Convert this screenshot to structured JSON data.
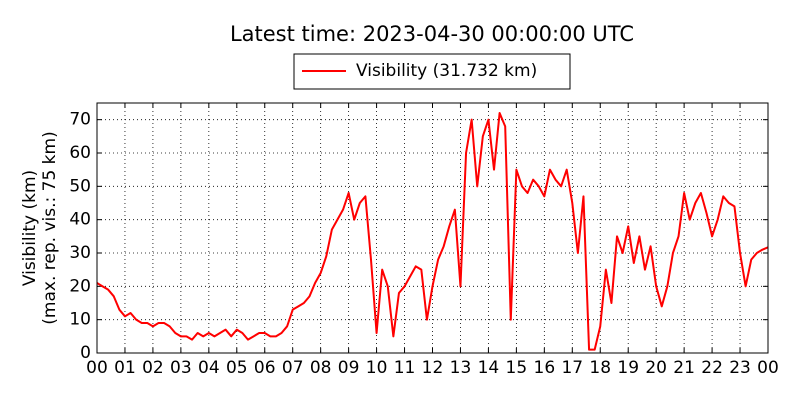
{
  "chart_data": {
    "type": "line",
    "title": "Latest time: 2023-04-30 00:00:00 UTC",
    "y_label": [
      "Visibility (km)",
      "(max. rep. vis.: 75 km)"
    ],
    "x": [
      0,
      0.2,
      0.4,
      0.6,
      0.8,
      1,
      1.2,
      1.4,
      1.6,
      1.8,
      2,
      2.2,
      2.4,
      2.6,
      2.8,
      3,
      3.2,
      3.4,
      3.6,
      3.8,
      4,
      4.2,
      4.4,
      4.6,
      4.8,
      5,
      5.2,
      5.4,
      5.6,
      5.8,
      6,
      6.2,
      6.4,
      6.6,
      6.8,
      7,
      7.2,
      7.4,
      7.6,
      7.8,
      8,
      8.2,
      8.4,
      8.6,
      8.8,
      9,
      9.2,
      9.4,
      9.6,
      9.8,
      10,
      10.2,
      10.4,
      10.6,
      10.8,
      11,
      11.2,
      11.4,
      11.6,
      11.8,
      12,
      12.2,
      12.4,
      12.6,
      12.8,
      13,
      13.2,
      13.4,
      13.6,
      13.8,
      14,
      14.2,
      14.4,
      14.6,
      14.8,
      15,
      15.2,
      15.4,
      15.6,
      15.8,
      16,
      16.2,
      16.4,
      16.6,
      16.8,
      17,
      17.2,
      17.4,
      17.6,
      17.8,
      18,
      18.2,
      18.4,
      18.6,
      18.8,
      19,
      19.2,
      19.4,
      19.6,
      19.8,
      20,
      20.2,
      20.4,
      20.6,
      20.8,
      21,
      21.2,
      21.4,
      21.6,
      21.8,
      22,
      22.2,
      22.4,
      22.6,
      22.8,
      23,
      23.2,
      23.4,
      23.6,
      23.8,
      24
    ],
    "series": [
      {
        "name": "Visibility (31.732 km)",
        "color": "#ff0000",
        "values": [
          21,
          20,
          19,
          17,
          13,
          11,
          12,
          10,
          9,
          9,
          8,
          9,
          9,
          8,
          6,
          5,
          5,
          4,
          6,
          5,
          6,
          5,
          6,
          7,
          5,
          7,
          6,
          4,
          5,
          6,
          6,
          5,
          5,
          6,
          8,
          13,
          14,
          15,
          17,
          21,
          24,
          29,
          37,
          40,
          43,
          48,
          40,
          45,
          47,
          28,
          6,
          25,
          20,
          5,
          18,
          20,
          23,
          26,
          25,
          10,
          20,
          28,
          32,
          38,
          43,
          20,
          60,
          70,
          50,
          65,
          70,
          55,
          72,
          68,
          10,
          55,
          50,
          48,
          52,
          50,
          47,
          55,
          52,
          50,
          55,
          45,
          30,
          47,
          1,
          1,
          8,
          25,
          15,
          35,
          30,
          38,
          27,
          35,
          25,
          32,
          20,
          14,
          20,
          30,
          35,
          48,
          40,
          45,
          48,
          42,
          35,
          40,
          47,
          45,
          44,
          30,
          20,
          28,
          30,
          31,
          31.732
        ]
      }
    ],
    "xlim": [
      0,
      24
    ],
    "xticks": [
      {
        "value": 0,
        "label": "00"
      },
      {
        "value": 1,
        "label": "01"
      },
      {
        "value": 2,
        "label": "02"
      },
      {
        "value": 3,
        "label": "03"
      },
      {
        "value": 4,
        "label": "04"
      },
      {
        "value": 5,
        "label": "05"
      },
      {
        "value": 6,
        "label": "06"
      },
      {
        "value": 7,
        "label": "07"
      },
      {
        "value": 8,
        "label": "08"
      },
      {
        "value": 9,
        "label": "09"
      },
      {
        "value": 10,
        "label": "10"
      },
      {
        "value": 11,
        "label": "11"
      },
      {
        "value": 12,
        "label": "12"
      },
      {
        "value": 13,
        "label": "13"
      },
      {
        "value": 14,
        "label": "14"
      },
      {
        "value": 15,
        "label": "15"
      },
      {
        "value": 16,
        "label": "16"
      },
      {
        "value": 17,
        "label": "17"
      },
      {
        "value": 18,
        "label": "18"
      },
      {
        "value": 19,
        "label": "19"
      },
      {
        "value": 20,
        "label": "20"
      },
      {
        "value": 21,
        "label": "21"
      },
      {
        "value": 22,
        "label": "22"
      },
      {
        "value": 23,
        "label": "23"
      },
      {
        "value": 24,
        "label": "00"
      }
    ],
    "ylim": [
      0,
      75
    ],
    "yticks": [
      0,
      10,
      20,
      30,
      40,
      50,
      60,
      70
    ],
    "grid": true,
    "legend": "top"
  }
}
